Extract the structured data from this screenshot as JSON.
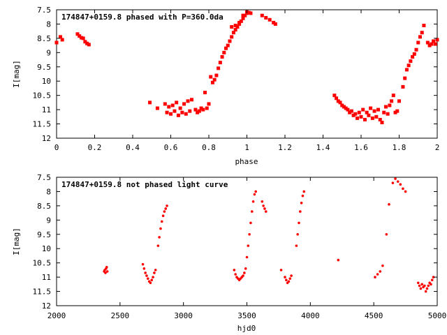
{
  "colors": {
    "points": "#ff0000",
    "axes": "#000000",
    "background": "#ffffff"
  },
  "chart_data": [
    {
      "type": "scatter",
      "title": "174847+0159.8 phased with P=360.0da",
      "xlabel": "phase",
      "ylabel": "I[mag]",
      "xlim": [
        0,
        2
      ],
      "ylim": [
        12,
        7.5
      ],
      "y_inverted": true,
      "grid": false,
      "xticks": [
        0,
        0.2,
        0.4,
        0.6,
        0.8,
        1,
        1.2,
        1.4,
        1.6,
        1.8,
        2
      ],
      "xtick_labels": [
        "0",
        "0.2",
        "0.4",
        "0.6",
        "0.8",
        "1",
        "1.2",
        "1.4",
        "1.6",
        "1.8",
        "2"
      ],
      "yticks": [
        7.5,
        8,
        8.5,
        9,
        9.5,
        10,
        10.5,
        11,
        11.5,
        12
      ],
      "ytick_labels": [
        "7.5",
        "8",
        "8.5",
        "9",
        "9.5",
        "10",
        "10.5",
        "11",
        "11.5",
        "12"
      ],
      "marker": "square",
      "series": [
        {
          "points": [
            [
              0.0,
              8.65
            ],
            [
              0.02,
              8.45
            ],
            [
              0.03,
              8.55
            ],
            [
              0.11,
              8.35
            ],
            [
              0.12,
              8.42
            ],
            [
              0.13,
              8.48
            ],
            [
              0.14,
              8.5
            ],
            [
              0.15,
              8.62
            ],
            [
              0.16,
              8.68
            ],
            [
              0.17,
              8.72
            ],
            [
              0.49,
              10.75
            ],
            [
              0.53,
              10.95
            ],
            [
              0.57,
              10.8
            ],
            [
              0.58,
              11.1
            ],
            [
              0.59,
              10.9
            ],
            [
              0.6,
              11.15
            ],
            [
              0.61,
              10.85
            ],
            [
              0.62,
              11.05
            ],
            [
              0.63,
              10.75
            ],
            [
              0.64,
              11.2
            ],
            [
              0.65,
              10.95
            ],
            [
              0.66,
              11.1
            ],
            [
              0.67,
              10.8
            ],
            [
              0.68,
              11.15
            ],
            [
              0.69,
              10.7
            ],
            [
              0.7,
              11.05
            ],
            [
              0.71,
              10.65
            ],
            [
              0.73,
              11.0
            ],
            [
              0.74,
              11.1
            ],
            [
              0.75,
              11.05
            ],
            [
              0.76,
              10.95
            ],
            [
              0.77,
              11.0
            ],
            [
              0.78,
              10.4
            ],
            [
              0.79,
              10.95
            ],
            [
              0.8,
              10.8
            ],
            [
              0.81,
              9.85
            ],
            [
              0.82,
              10.05
            ],
            [
              0.83,
              9.95
            ],
            [
              0.84,
              9.8
            ],
            [
              0.85,
              9.55
            ],
            [
              0.86,
              9.35
            ],
            [
              0.87,
              9.15
            ],
            [
              0.88,
              9.0
            ],
            [
              0.89,
              8.85
            ],
            [
              0.9,
              8.75
            ],
            [
              0.91,
              8.6
            ],
            [
              0.92,
              8.45
            ],
            [
              0.93,
              8.3
            ],
            [
              0.94,
              8.2
            ],
            [
              0.95,
              8.1
            ],
            [
              0.96,
              8.0
            ],
            [
              0.97,
              7.9
            ],
            [
              0.98,
              7.8
            ],
            [
              0.99,
              7.7
            ],
            [
              1.0,
              7.62
            ],
            [
              1.01,
              7.6
            ],
            [
              1.02,
              7.62
            ],
            [
              0.92,
              8.1
            ],
            [
              0.94,
              8.05
            ],
            [
              0.96,
              7.95
            ],
            [
              0.98,
              7.7
            ],
            [
              1.0,
              7.58
            ],
            [
              1.08,
              7.7
            ],
            [
              1.1,
              7.78
            ],
            [
              1.12,
              7.85
            ],
            [
              1.14,
              7.95
            ],
            [
              1.15,
              8.0
            ],
            [
              1.46,
              10.5
            ],
            [
              1.47,
              10.6
            ],
            [
              1.48,
              10.7
            ],
            [
              1.49,
              10.75
            ],
            [
              1.5,
              10.85
            ],
            [
              1.51,
              10.9
            ],
            [
              1.52,
              10.95
            ],
            [
              1.53,
              11.0
            ],
            [
              1.54,
              11.1
            ],
            [
              1.55,
              11.05
            ],
            [
              1.56,
              11.2
            ],
            [
              1.57,
              11.15
            ],
            [
              1.58,
              11.3
            ],
            [
              1.59,
              11.1
            ],
            [
              1.6,
              11.25
            ],
            [
              1.61,
              11.0
            ],
            [
              1.62,
              11.35
            ],
            [
              1.63,
              11.1
            ],
            [
              1.64,
              11.2
            ],
            [
              1.65,
              10.95
            ],
            [
              1.66,
              11.3
            ],
            [
              1.67,
              11.05
            ],
            [
              1.68,
              11.25
            ],
            [
              1.69,
              11.0
            ],
            [
              1.7,
              11.35
            ],
            [
              1.71,
              11.45
            ],
            [
              1.72,
              11.1
            ],
            [
              1.73,
              10.9
            ],
            [
              1.74,
              11.15
            ],
            [
              1.75,
              10.85
            ],
            [
              1.76,
              10.7
            ],
            [
              1.77,
              10.5
            ],
            [
              1.78,
              11.1
            ],
            [
              1.79,
              11.05
            ],
            [
              1.8,
              10.7
            ],
            [
              1.82,
              10.2
            ],
            [
              1.83,
              9.9
            ],
            [
              1.84,
              9.6
            ],
            [
              1.85,
              9.45
            ],
            [
              1.86,
              9.3
            ],
            [
              1.87,
              9.15
            ],
            [
              1.88,
              9.05
            ],
            [
              1.89,
              8.9
            ],
            [
              1.9,
              8.65
            ],
            [
              1.91,
              8.45
            ],
            [
              1.92,
              8.3
            ],
            [
              1.93,
              8.05
            ],
            [
              1.95,
              8.65
            ],
            [
              1.96,
              8.75
            ],
            [
              1.97,
              8.7
            ],
            [
              1.98,
              8.6
            ],
            [
              1.99,
              8.7
            ],
            [
              2.0,
              8.55
            ]
          ]
        }
      ]
    },
    {
      "type": "scatter",
      "title": "174847+0159.8 not phased light curve",
      "xlabel": "hjd0",
      "ylabel": "I[mag]",
      "xlim": [
        2000,
        5000
      ],
      "ylim": [
        12,
        7.5
      ],
      "y_inverted": true,
      "grid": false,
      "xticks": [
        2000,
        2500,
        3000,
        3500,
        4000,
        4500,
        5000
      ],
      "xtick_labels": [
        "2000",
        "2500",
        "3000",
        "3500",
        "4000",
        "4500",
        "5000"
      ],
      "yticks": [
        7.5,
        8,
        8.5,
        9,
        9.5,
        10,
        10.5,
        11,
        11.5,
        12
      ],
      "ytick_labels": [
        "7.5",
        "8",
        "8.5",
        "9",
        "9.5",
        "10",
        "10.5",
        "11",
        "11.5",
        "12"
      ],
      "marker": "dot",
      "series": [
        {
          "points": [
            [
              2375,
              10.8
            ],
            [
              2380,
              10.75
            ],
            [
              2385,
              10.85
            ],
            [
              2390,
              10.7
            ],
            [
              2395,
              10.65
            ],
            [
              2400,
              10.8
            ],
            [
              2680,
              10.55
            ],
            [
              2690,
              10.7
            ],
            [
              2700,
              10.85
            ],
            [
              2710,
              10.95
            ],
            [
              2720,
              11.05
            ],
            [
              2730,
              11.15
            ],
            [
              2740,
              11.2
            ],
            [
              2750,
              11.1
            ],
            [
              2760,
              11.0
            ],
            [
              2770,
              10.85
            ],
            [
              2780,
              10.75
            ],
            [
              2800,
              9.9
            ],
            [
              2810,
              9.6
            ],
            [
              2820,
              9.3
            ],
            [
              2830,
              9.05
            ],
            [
              2840,
              8.85
            ],
            [
              2850,
              8.7
            ],
            [
              2860,
              8.6
            ],
            [
              2870,
              8.5
            ],
            [
              3400,
              10.75
            ],
            [
              3410,
              10.9
            ],
            [
              3420,
              11.0
            ],
            [
              3430,
              11.05
            ],
            [
              3440,
              11.1
            ],
            [
              3450,
              11.05
            ],
            [
              3460,
              11.0
            ],
            [
              3470,
              10.95
            ],
            [
              3480,
              10.85
            ],
            [
              3490,
              10.7
            ],
            [
              3500,
              10.3
            ],
            [
              3510,
              9.9
            ],
            [
              3520,
              9.5
            ],
            [
              3530,
              9.1
            ],
            [
              3540,
              8.7
            ],
            [
              3550,
              8.35
            ],
            [
              3560,
              8.1
            ],
            [
              3570,
              8.0
            ],
            [
              3620,
              8.35
            ],
            [
              3630,
              8.5
            ],
            [
              3640,
              8.6
            ],
            [
              3650,
              8.7
            ],
            [
              3770,
              10.75
            ],
            [
              3800,
              11.0
            ],
            [
              3810,
              11.1
            ],
            [
              3820,
              11.2
            ],
            [
              3830,
              11.15
            ],
            [
              3840,
              11.05
            ],
            [
              3850,
              10.95
            ],
            [
              3890,
              9.9
            ],
            [
              3900,
              9.5
            ],
            [
              3910,
              9.1
            ],
            [
              3920,
              8.7
            ],
            [
              3930,
              8.4
            ],
            [
              3940,
              8.15
            ],
            [
              3950,
              8.0
            ],
            [
              4220,
              10.4
            ],
            [
              4510,
              11.0
            ],
            [
              4530,
              10.9
            ],
            [
              4550,
              10.8
            ],
            [
              4570,
              10.6
            ],
            [
              4600,
              9.5
            ],
            [
              4620,
              8.45
            ],
            [
              4650,
              7.7
            ],
            [
              4670,
              7.55
            ],
            [
              4690,
              7.65
            ],
            [
              4710,
              7.75
            ],
            [
              4730,
              7.9
            ],
            [
              4750,
              8.0
            ],
            [
              4850,
              11.2
            ],
            [
              4860,
              11.3
            ],
            [
              4870,
              11.4
            ],
            [
              4880,
              11.25
            ],
            [
              4890,
              11.35
            ],
            [
              4900,
              11.3
            ],
            [
              4910,
              11.5
            ],
            [
              4920,
              11.4
            ],
            [
              4930,
              11.3
            ],
            [
              4940,
              11.2
            ],
            [
              4950,
              11.25
            ],
            [
              4960,
              11.1
            ],
            [
              4970,
              11.0
            ]
          ]
        }
      ]
    }
  ]
}
